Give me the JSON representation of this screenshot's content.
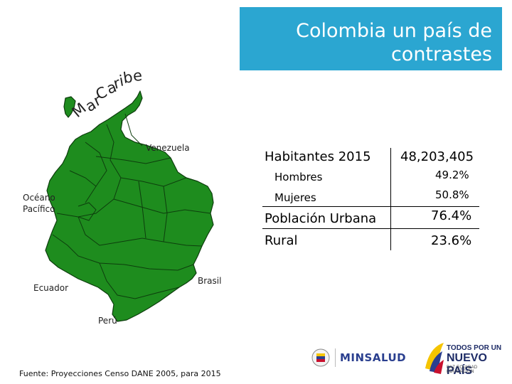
{
  "title": {
    "line1": "Colombia un país de",
    "line2": "contrastes"
  },
  "sea_label": "Mar Caribe",
  "map_labels": {
    "venezuela": "Venezuela",
    "ocean": "Océano\nPacífico",
    "ecuador": "Ecuador",
    "brasil": "Brasil",
    "peru": "Perú"
  },
  "stats": {
    "habitantes_label": "Habitantes 2015",
    "habitantes_value": "48,203,405",
    "hombres_label": "Hombres",
    "hombres_value": "49.2%",
    "mujeres_label": "Mujeres",
    "mujeres_value": "50.8%",
    "urbana_label": "Población Urbana",
    "urbana_value": "76.4%",
    "rural_label": "Rural",
    "rural_value": "23.6%"
  },
  "source": "Fuente: Proyecciones Censo DANE 2005, para 2015",
  "logos": {
    "minsalud": "MINSALUD",
    "pais_line1": "TODOS POR UN",
    "pais_line2": "NUEVO PAÍS",
    "pais_line3": "PAZ  EQUIDAD  EDUCACIÓN"
  },
  "colors": {
    "title_bg": "#2ba6d1",
    "map_fill": "#1e8c1e",
    "map_stroke": "#0d3d0d"
  }
}
